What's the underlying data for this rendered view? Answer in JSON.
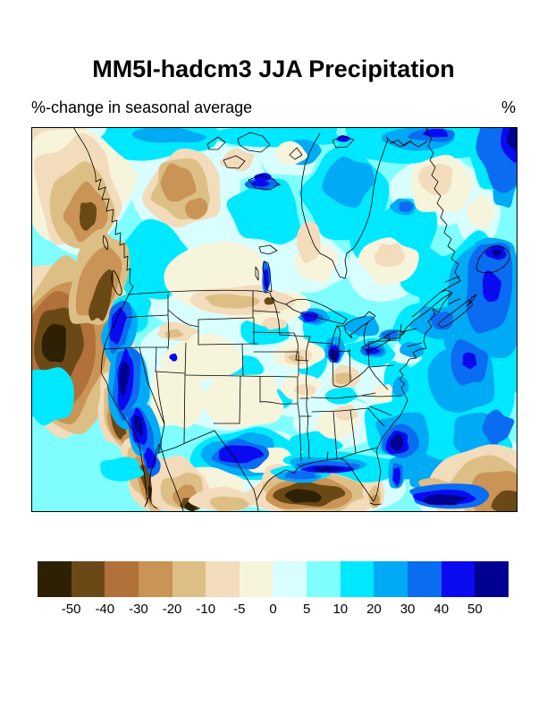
{
  "figure": {
    "title": "MM5I-hadcm3 JJA Precipitation",
    "subtitle": "%-change in seasonal average",
    "units_label": "%"
  },
  "colorbar": {
    "tick_labels": [
      "-50",
      "-40",
      "-30",
      "-20",
      "-10",
      "-5",
      "0",
      "5",
      "10",
      "20",
      "30",
      "40",
      "50"
    ],
    "segment_colors": [
      "#2e2005",
      "#6b4916",
      "#b2713a",
      "#c99455",
      "#ddbf86",
      "#f2dcbc",
      "#f7f4dc",
      "#d9feff",
      "#7ffdff",
      "#00e8ff",
      "#00aaf5",
      "#0a6cf0",
      "#0a0af0",
      "#000090"
    ]
  },
  "chart_data": {
    "type": "heatmap",
    "title": "MM5I-hadcm3 JJA Precipitation",
    "subtitle": "%-change in seasonal average",
    "units": "%",
    "region": "North America",
    "levels": [
      -50,
      -40,
      -30,
      -20,
      -10,
      -5,
      0,
      5,
      10,
      20,
      30,
      40,
      50
    ],
    "palette": [
      "#2e2005",
      "#6b4916",
      "#b2713a",
      "#c99455",
      "#ddbf86",
      "#f2dcbc",
      "#f7f4dc",
      "#d9feff",
      "#7ffdff",
      "#00e8ff",
      "#00aaf5",
      "#0a6cf0",
      "#0a0af0",
      "#000090"
    ],
    "legend_position": "bottom",
    "notes_visible_patterns": "drying (browns) along Pacific coast ocean, Alaska/Yukon, Mexico, Gulf of Mexico core and subtropical Atlantic corner; wetting (blues) over Sierra Nevada, New Mexico/Texas, Gulf coast fringe, southeast Atlantic coast, eastern Canada and Atlantic"
  }
}
